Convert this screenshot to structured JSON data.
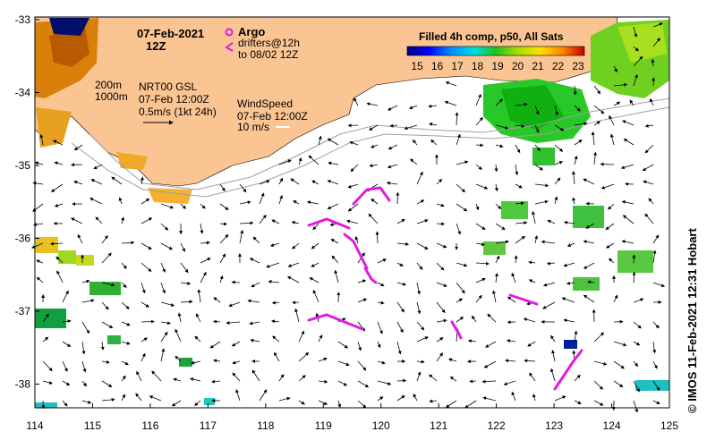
{
  "title": {
    "date": "07-Feb-2021",
    "time": "12Z"
  },
  "legend": {
    "argo_label": "Argo",
    "drifters_line1": "drifters@12h",
    "drifters_line2": "to 08/02 12Z",
    "sst_title": "Filled 4h comp, p50, All Sats",
    "sst_ticks": [
      "15",
      "16",
      "17",
      "18",
      "19",
      "20",
      "21",
      "22",
      "23"
    ],
    "isobath_200": "200m",
    "isobath_1000": "1000m",
    "current_line1": "NRT00 GSL",
    "current_line2": "07-Feb 12:00Z",
    "current_line3": "0.5m/s (1kt 24h)",
    "wind_line1": "WindSpeed",
    "wind_line2": "07-Feb 12:00Z",
    "wind_line3": "10 m/s"
  },
  "colors": {
    "land": "#fbc593",
    "argo": "#e01ce0"
  },
  "credit": "© IMOS 11-Feb-2021 12:31 Hobart",
  "axes": {
    "x_ticks": [
      "114",
      "115",
      "116",
      "117",
      "118",
      "119",
      "120",
      "121",
      "122",
      "123",
      "124",
      "125"
    ],
    "y_ticks": [
      "-33",
      "-34",
      "-35",
      "-36",
      "-37",
      "-38"
    ]
  }
}
